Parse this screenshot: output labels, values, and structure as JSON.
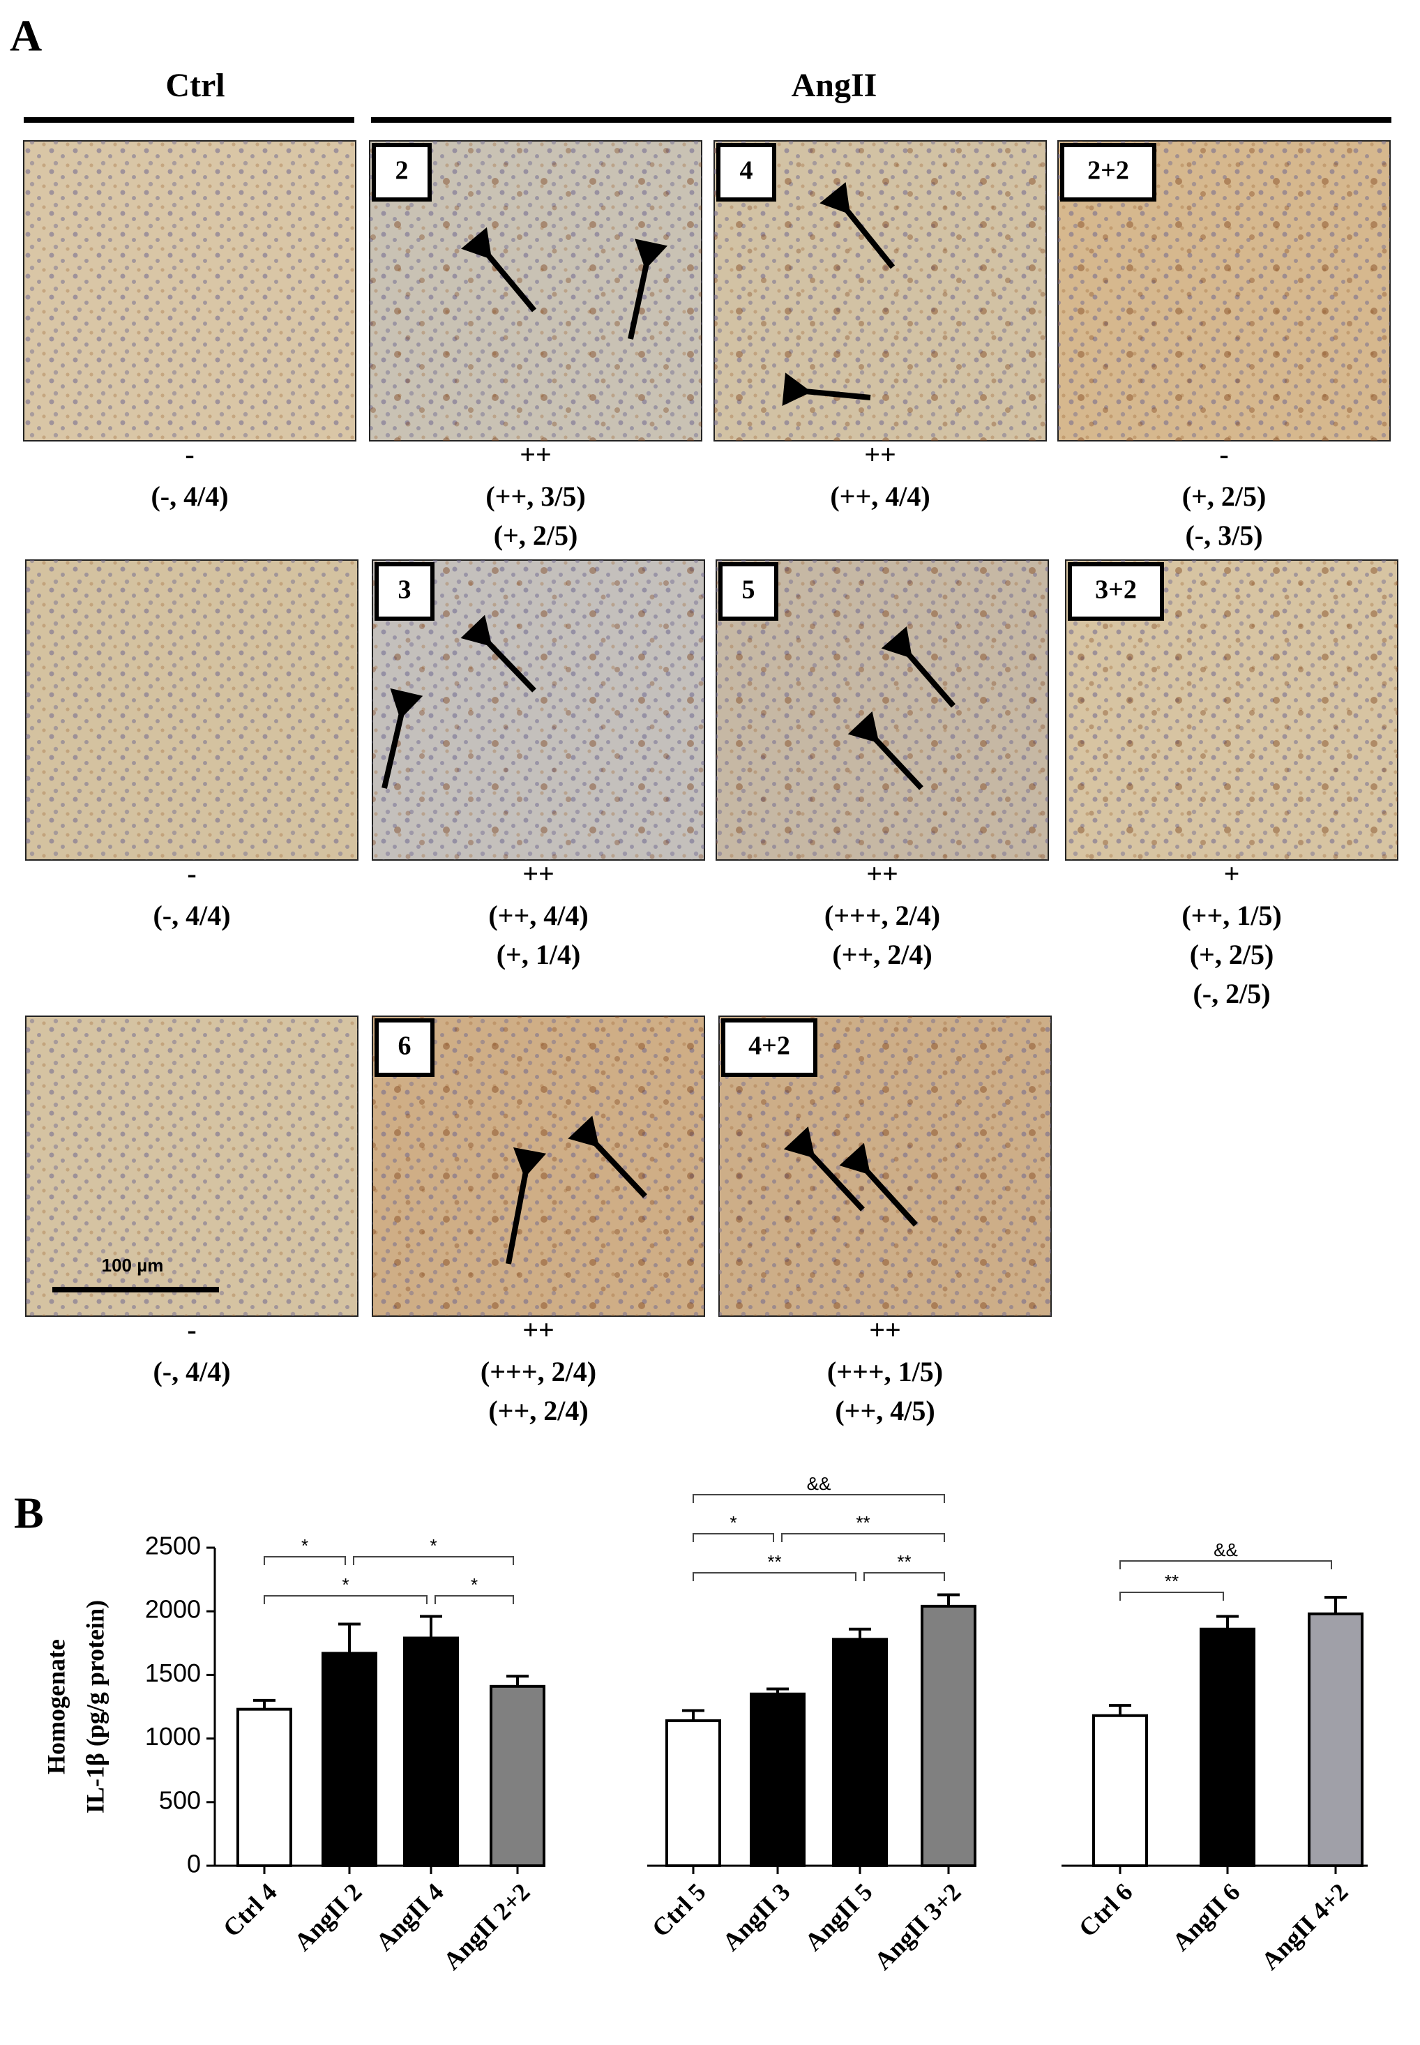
{
  "panel_a": {
    "label": "A",
    "headers": [
      "Ctrl",
      "AngII"
    ],
    "scale_bar": "100 µm",
    "rows": [
      [
        {
          "caption": [
            "-",
            "(-, 4/4)"
          ]
        },
        {
          "tag": "2",
          "caption": [
            "++",
            "(++, 3/5)",
            "(+, 2/5)"
          ]
        },
        {
          "tag": "4",
          "caption": [
            "++",
            "(++, 4/4)"
          ]
        },
        {
          "tag": "2+2",
          "caption": [
            "-",
            "(+, 2/5)",
            "(-, 3/5)"
          ]
        }
      ],
      [
        {
          "caption": [
            "-",
            "(-, 4/4)"
          ]
        },
        {
          "tag": "3",
          "caption": [
            "++",
            "(++, 4/4)",
            "(+, 1/4)"
          ]
        },
        {
          "tag": "5",
          "caption": [
            "++",
            "(+++, 2/4)",
            "(++, 2/4)"
          ]
        },
        {
          "tag": "3+2",
          "caption": [
            "+",
            "(++, 1/5)",
            "(+, 2/5)",
            "(-, 2/5)"
          ]
        }
      ],
      [
        {
          "caption": [
            "-",
            "(-, 4/4)"
          ]
        },
        {
          "tag": "6",
          "caption": [
            "++",
            "(+++, 2/4)",
            "(++, 2/4)"
          ]
        },
        {
          "tag": "4+2",
          "caption": [
            "++",
            "(+++, 1/5)",
            "(++, 4/5)"
          ]
        }
      ]
    ]
  },
  "panel_b": {
    "label": "B"
  },
  "chart_data": [
    {
      "type": "bar",
      "ylabel": [
        "Homogenate",
        "IL-1β (pg/g protein)"
      ],
      "categories": [
        "Ctrl 4",
        "AngII 2",
        "AngII 4",
        "AngII 2+2"
      ],
      "values": [
        1230,
        1670,
        1790,
        1410
      ],
      "errors": [
        70,
        230,
        170,
        80
      ],
      "colors": [
        "#ffffff",
        "#000000",
        "#000000",
        "#808080"
      ],
      "ylim": [
        0,
        2500
      ],
      "yticks": [
        0,
        500,
        1000,
        1500,
        2000,
        2500
      ],
      "significance": [
        "*",
        "*",
        "*",
        "*"
      ]
    },
    {
      "type": "bar",
      "categories": [
        "Ctrl 5",
        "AngII 3",
        "AngII 5",
        "AngII 3+2"
      ],
      "values": [
        1140,
        1350,
        1780,
        2040
      ],
      "errors": [
        80,
        40,
        80,
        90
      ],
      "colors": [
        "#ffffff",
        "#000000",
        "#000000",
        "#808080"
      ],
      "ylim": [
        0,
        2500
      ],
      "significance": [
        "&&",
        "*",
        "**",
        "**",
        "**"
      ]
    },
    {
      "type": "bar",
      "categories": [
        "Ctrl 6",
        "AngII 6",
        "AngII 4+2"
      ],
      "values": [
        1180,
        1860,
        1980
      ],
      "errors": [
        80,
        100,
        130
      ],
      "colors": [
        "#ffffff",
        "#000000",
        "#a0a0a8"
      ],
      "ylim": [
        0,
        2500
      ],
      "significance": [
        "&&",
        "**"
      ]
    }
  ]
}
